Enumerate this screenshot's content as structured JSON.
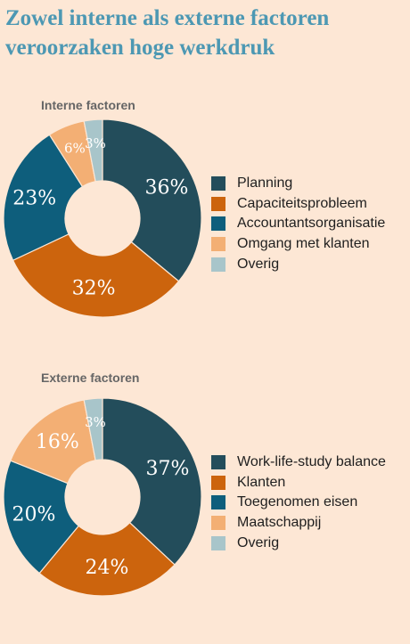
{
  "title": "Zowel interne als externe factoren veroorzaken hoge werkdruk",
  "colors": {
    "background": "#fde7d5",
    "title": "#4d98b3",
    "slice_text": "#ffffff"
  },
  "chart_data": [
    {
      "type": "pie",
      "variant": "donut",
      "title": "Interne factoren",
      "categories": [
        "Planning",
        "Capaciteitsprobleem",
        "Accountantsorganisatie",
        "Omgang met klanten",
        "Overig"
      ],
      "values": [
        36,
        32,
        23,
        6,
        3
      ],
      "labels": [
        "36%",
        "32%",
        "23%",
        "6%",
        "3%"
      ],
      "colors": [
        "#234d5b",
        "#cc640d",
        "#0e5e7c",
        "#f3af74",
        "#a8c5ca"
      ],
      "legend": "right"
    },
    {
      "type": "pie",
      "variant": "donut",
      "title": "Externe factoren",
      "categories": [
        "Work-life-study balance",
        "Klanten",
        "Toegenomen eisen",
        "Maatschappij",
        "Overig"
      ],
      "values": [
        37,
        24,
        20,
        16,
        3
      ],
      "labels": [
        "37%",
        "24%",
        "20%",
        "16%",
        "3%"
      ],
      "colors": [
        "#234d5b",
        "#cc640d",
        "#0e5e7c",
        "#f3af74",
        "#a8c5ca"
      ],
      "legend": "right"
    }
  ]
}
